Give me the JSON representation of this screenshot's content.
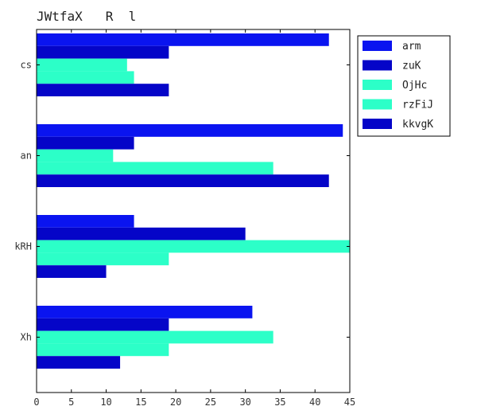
{
  "chart_data": {
    "type": "bar",
    "orientation": "horizontal",
    "title": "JWtfaX   R  l",
    "xlabel": "",
    "ylabel": "",
    "xlim": [
      0,
      45
    ],
    "xticks": [
      "0",
      "5",
      "10",
      "15",
      "20",
      "25",
      "30",
      "35",
      "40",
      "45"
    ],
    "categories": [
      "cs",
      "an",
      "kRH",
      "Xh"
    ],
    "series": [
      {
        "name": "arm",
        "color": "#0a14f0",
        "values": [
          42,
          44,
          14,
          31
        ]
      },
      {
        "name": "zuK",
        "color": "#0505c8",
        "values": [
          19,
          14,
          30,
          19
        ]
      },
      {
        "name": "OjHc",
        "color": "#2cffc8",
        "values": [
          13,
          11,
          45,
          34
        ]
      },
      {
        "name": "rzFiJ",
        "color": "#2cffc8",
        "values": [
          14,
          34,
          19,
          19
        ]
      },
      {
        "name": "kkvgK",
        "color": "#0505c8",
        "values": [
          19,
          42,
          10,
          12
        ]
      }
    ],
    "grid": false,
    "legend_position": "outside-top-right"
  }
}
